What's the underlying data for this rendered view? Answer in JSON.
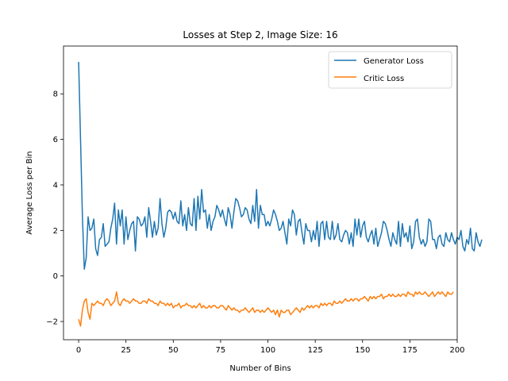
{
  "chart_data": {
    "type": "line",
    "title": "Losses at Step 2, Image Size: 16",
    "xlabel": "Number of Bins",
    "ylabel": "Average Loss per Bin",
    "xlim": [
      -8,
      200
    ],
    "ylim": [
      -2.8,
      10.1
    ],
    "xticks": [
      0,
      25,
      50,
      75,
      100,
      125,
      150,
      175,
      200
    ],
    "yticks": [
      -2,
      0,
      2,
      4,
      6,
      8
    ],
    "grid": false,
    "legend_position": "top-right",
    "series": [
      {
        "name": "Generator Loss",
        "color": "#1f77b4",
        "values": [
          9.4,
          6.0,
          2.6,
          0.3,
          0.8,
          2.6,
          2.0,
          2.1,
          2.5,
          1.2,
          0.9,
          1.6,
          1.7,
          2.3,
          1.3,
          1.4,
          1.5,
          2.1,
          2.5,
          3.2,
          1.4,
          2.9,
          2.2,
          2.9,
          1.4,
          2.6,
          1.6,
          2.0,
          2.3,
          2.4,
          1.1,
          2.6,
          2.5,
          2.2,
          2.3,
          2.6,
          1.7,
          3.0,
          2.4,
          1.7,
          2.4,
          1.8,
          2.1,
          3.4,
          2.3,
          1.7,
          2.1,
          2.8,
          2.9,
          2.8,
          2.5,
          2.8,
          2.4,
          2.3,
          3.3,
          2.2,
          2.7,
          2.0,
          3.0,
          2.3,
          2.2,
          3.4,
          2.0,
          3.5,
          2.5,
          3.8,
          2.8,
          2.9,
          2.1,
          2.7,
          2.0,
          2.4,
          2.6,
          3.1,
          2.9,
          2.6,
          2.9,
          2.5,
          2.2,
          3.0,
          2.7,
          2.1,
          2.8,
          3.4,
          3.3,
          3.0,
          2.6,
          2.7,
          3.0,
          2.9,
          2.5,
          2.3,
          3.1,
          2.4,
          3.8,
          2.1,
          3.1,
          2.7,
          2.7,
          2.2,
          2.4,
          2.2,
          2.5,
          2.9,
          2.7,
          2.4,
          2.0,
          2.1,
          2.4,
          1.9,
          1.4,
          2.5,
          2.2,
          2.9,
          2.7,
          1.8,
          2.4,
          2.5,
          1.9,
          1.4,
          2.3,
          2.0,
          2.0,
          1.5,
          2.0,
          1.6,
          2.4,
          1.3,
          2.3,
          2.4,
          1.6,
          2.4,
          1.7,
          1.6,
          2.4,
          1.6,
          1.8,
          2.3,
          1.6,
          1.5,
          1.8,
          2.0,
          1.9,
          1.4,
          1.9,
          1.3,
          2.5,
          1.8,
          2.5,
          1.7,
          2.2,
          2.4,
          1.7,
          1.5,
          1.8,
          2.0,
          1.4,
          2.1,
          1.3,
          1.6,
          1.9,
          2.4,
          2.3,
          2.0,
          1.6,
          1.3,
          1.9,
          1.6,
          1.4,
          2.4,
          1.3,
          2.3,
          1.7,
          1.9,
          1.5,
          2.2,
          1.2,
          1.5,
          2.4,
          2.5,
          1.7,
          1.4,
          1.6,
          1.3,
          1.5,
          2.5,
          2.4,
          1.6,
          1.6,
          1.2,
          1.7,
          1.8,
          1.4,
          1.3,
          1.9,
          1.6,
          1.5,
          1.9,
          1.6,
          1.4,
          1.7,
          1.6,
          2.0,
          1.3,
          1.1,
          1.6,
          1.4,
          2.1,
          1.2,
          1.1,
          1.9,
          1.5,
          1.3,
          1.6
        ]
      },
      {
        "name": "Critic Loss",
        "color": "#ff7f0e",
        "values": [
          -1.9,
          -2.2,
          -1.5,
          -1.1,
          -1.0,
          -1.6,
          -1.9,
          -1.2,
          -1.3,
          -1.2,
          -1.1,
          -1.2,
          -1.2,
          -1.3,
          -1.1,
          -1.0,
          -1.1,
          -1.3,
          -1.2,
          -1.1,
          -0.7,
          -1.2,
          -1.3,
          -1.1,
          -1.0,
          -1.1,
          -1.1,
          -1.2,
          -1.1,
          -1.0,
          -1.1,
          -1.1,
          -1.2,
          -1.2,
          -1.1,
          -1.1,
          -1.2,
          -1.0,
          -1.1,
          -1.1,
          -1.2,
          -1.2,
          -1.3,
          -1.1,
          -1.2,
          -1.2,
          -1.3,
          -1.2,
          -1.3,
          -1.2,
          -1.4,
          -1.3,
          -1.3,
          -1.2,
          -1.4,
          -1.3,
          -1.3,
          -1.2,
          -1.3,
          -1.3,
          -1.4,
          -1.3,
          -1.4,
          -1.3,
          -1.2,
          -1.4,
          -1.3,
          -1.4,
          -1.4,
          -1.3,
          -1.4,
          -1.3,
          -1.3,
          -1.4,
          -1.4,
          -1.3,
          -1.3,
          -1.4,
          -1.5,
          -1.3,
          -1.4,
          -1.5,
          -1.4,
          -1.5,
          -1.5,
          -1.6,
          -1.5,
          -1.5,
          -1.4,
          -1.5,
          -1.6,
          -1.5,
          -1.4,
          -1.6,
          -1.5,
          -1.5,
          -1.6,
          -1.5,
          -1.6,
          -1.5,
          -1.4,
          -1.5,
          -1.6,
          -1.5,
          -1.7,
          -1.5,
          -1.8,
          -1.5,
          -1.6,
          -1.6,
          -1.5,
          -1.5,
          -1.7,
          -1.6,
          -1.5,
          -1.4,
          -1.5,
          -1.6,
          -1.4,
          -1.5,
          -1.4,
          -1.3,
          -1.4,
          -1.3,
          -1.4,
          -1.3,
          -1.3,
          -1.4,
          -1.2,
          -1.3,
          -1.2,
          -1.3,
          -1.2,
          -1.2,
          -1.3,
          -1.1,
          -1.2,
          -1.2,
          -1.1,
          -1.2,
          -1.1,
          -1.0,
          -1.1,
          -1.1,
          -1.0,
          -1.1,
          -1.0,
          -1.0,
          -1.1,
          -1.0,
          -1.0,
          -0.9,
          -1.0,
          -1.1,
          -0.9,
          -1.0,
          -0.9,
          -1.0,
          -0.9,
          -0.9,
          -0.8,
          -1.0,
          -0.9,
          -0.9,
          -0.8,
          -0.9,
          -0.8,
          -0.9,
          -0.9,
          -0.8,
          -0.9,
          -0.8,
          -0.8,
          -0.9,
          -0.7,
          -0.8,
          -0.8,
          -0.9,
          -0.7,
          -0.8,
          -0.7,
          -0.8,
          -0.8,
          -0.7,
          -0.8,
          -0.9,
          -0.8,
          -0.7,
          -0.9,
          -0.8,
          -0.7,
          -0.8,
          -0.7,
          -0.8,
          -0.9,
          -0.7,
          -0.8,
          -0.8,
          -0.7
        ]
      }
    ]
  }
}
